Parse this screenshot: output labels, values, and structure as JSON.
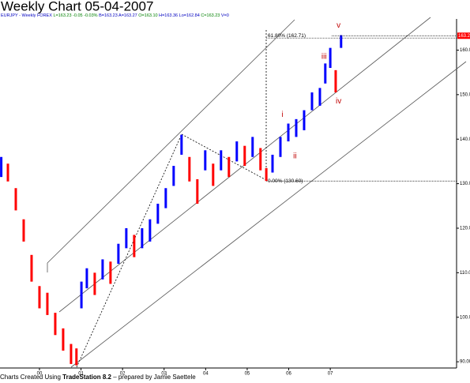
{
  "chart_data": {
    "type": "bar-range",
    "title": "Weekly Chart 05-04-2007",
    "header": [
      "EURJPY - Weekly FOREX",
      "L=163.23 -0.05 -0.03%",
      "B=163.23 A=163.27",
      "O=163.10",
      "H=163.36 Lo=162.84",
      "C=163.23",
      "V=0"
    ],
    "footer_prefix": "Charts Created Using",
    "footer_brand": "TradeStation 8.2",
    "footer_suffix": "– prepared by Jamie Saettele",
    "last_price": {
      "value": 163.23,
      "label": "163.23"
    },
    "fib_levels": [
      {
        "value": 162.71,
        "label": "61.80% (162.71)"
      },
      {
        "value": 130.6,
        "label": "0.00% (130.60)"
      }
    ],
    "wave_labels": [
      {
        "text": "i",
        "x": 2005.85,
        "y": 145.5
      },
      {
        "text": "ii",
        "x": 2006.15,
        "y": 136.2
      },
      {
        "text": "iii",
        "x": 2006.85,
        "y": 158.5
      },
      {
        "text": "iv",
        "x": 2007.2,
        "y": 148.5
      },
      {
        "text": "v",
        "x": 2007.2,
        "y": 165.5
      }
    ],
    "x": [
      1999.08,
      1999.24,
      1999.43,
      1999.62,
      1999.81,
      2000.0,
      2000.19,
      2000.38,
      2000.57,
      2000.76,
      2000.89,
      2001.01,
      2001.14,
      2001.33,
      2001.52,
      2001.71,
      2001.9,
      2002.09,
      2002.28,
      2002.47,
      2002.66,
      2002.85,
      2003.04,
      2003.23,
      2003.42,
      2003.61,
      2003.8,
      2003.99,
      2004.18,
      2004.37,
      2004.56,
      2004.75,
      2004.94,
      2005.13,
      2005.32,
      2005.46,
      2005.61,
      2005.8,
      2005.99,
      2006.18,
      2006.37,
      2006.56,
      2006.75,
      2006.88,
      2007.0,
      2007.13,
      2007.26
    ],
    "high": [
      136,
      134.5,
      129,
      122,
      114,
      107,
      105.5,
      101,
      97.5,
      94,
      93,
      108,
      111,
      110,
      113,
      112.5,
      116.5,
      120,
      118.5,
      120,
      122,
      125.5,
      129,
      134,
      141,
      136,
      131,
      137.5,
      134.5,
      137.5,
      136,
      139.5,
      138.5,
      140.5,
      138,
      133.5,
      136.5,
      140.5,
      143.5,
      144.5,
      146.5,
      150.5,
      151.5,
      157,
      160.5,
      155.5,
      163.36
    ],
    "low": [
      131.5,
      130.5,
      124,
      117,
      108,
      102,
      100.5,
      96,
      92.5,
      89.5,
      89.2,
      102,
      106.5,
      105,
      108.5,
      107.5,
      112,
      115.5,
      113.5,
      115.5,
      117,
      121,
      124.5,
      129.5,
      136.5,
      130.5,
      125.5,
      133,
      129.5,
      133,
      131.5,
      135,
      134,
      136,
      133,
      130.6,
      132.5,
      136,
      139.5,
      140.5,
      142,
      146.5,
      147.5,
      152.5,
      156,
      150.5,
      160.5
    ],
    "up_color": "#0000ff",
    "down_color": "#ff0000",
    "xlim": [
      1999.05,
      2010.04
    ],
    "ylim": [
      88.6,
      167
    ],
    "xticks": [
      {
        "value": 2000,
        "label": "00"
      },
      {
        "value": 2001,
        "label": "01"
      },
      {
        "value": 2002,
        "label": "02"
      },
      {
        "value": 2003,
        "label": "03"
      },
      {
        "value": 2004,
        "label": "04"
      },
      {
        "value": 2005,
        "label": "05"
      },
      {
        "value": 2006,
        "label": "06"
      },
      {
        "value": 2007,
        "label": "07"
      }
    ],
    "yticks": [
      {
        "value": 90,
        "label": "90.00"
      },
      {
        "value": 100,
        "label": "100.00"
      },
      {
        "value": 110,
        "label": "110.00"
      },
      {
        "value": 120,
        "label": "120.00"
      },
      {
        "value": 130,
        "label": "130.00"
      },
      {
        "value": 140,
        "label": "140.00"
      },
      {
        "value": 150,
        "label": "150.00"
      },
      {
        "value": 160,
        "label": "160.00"
      }
    ]
  }
}
